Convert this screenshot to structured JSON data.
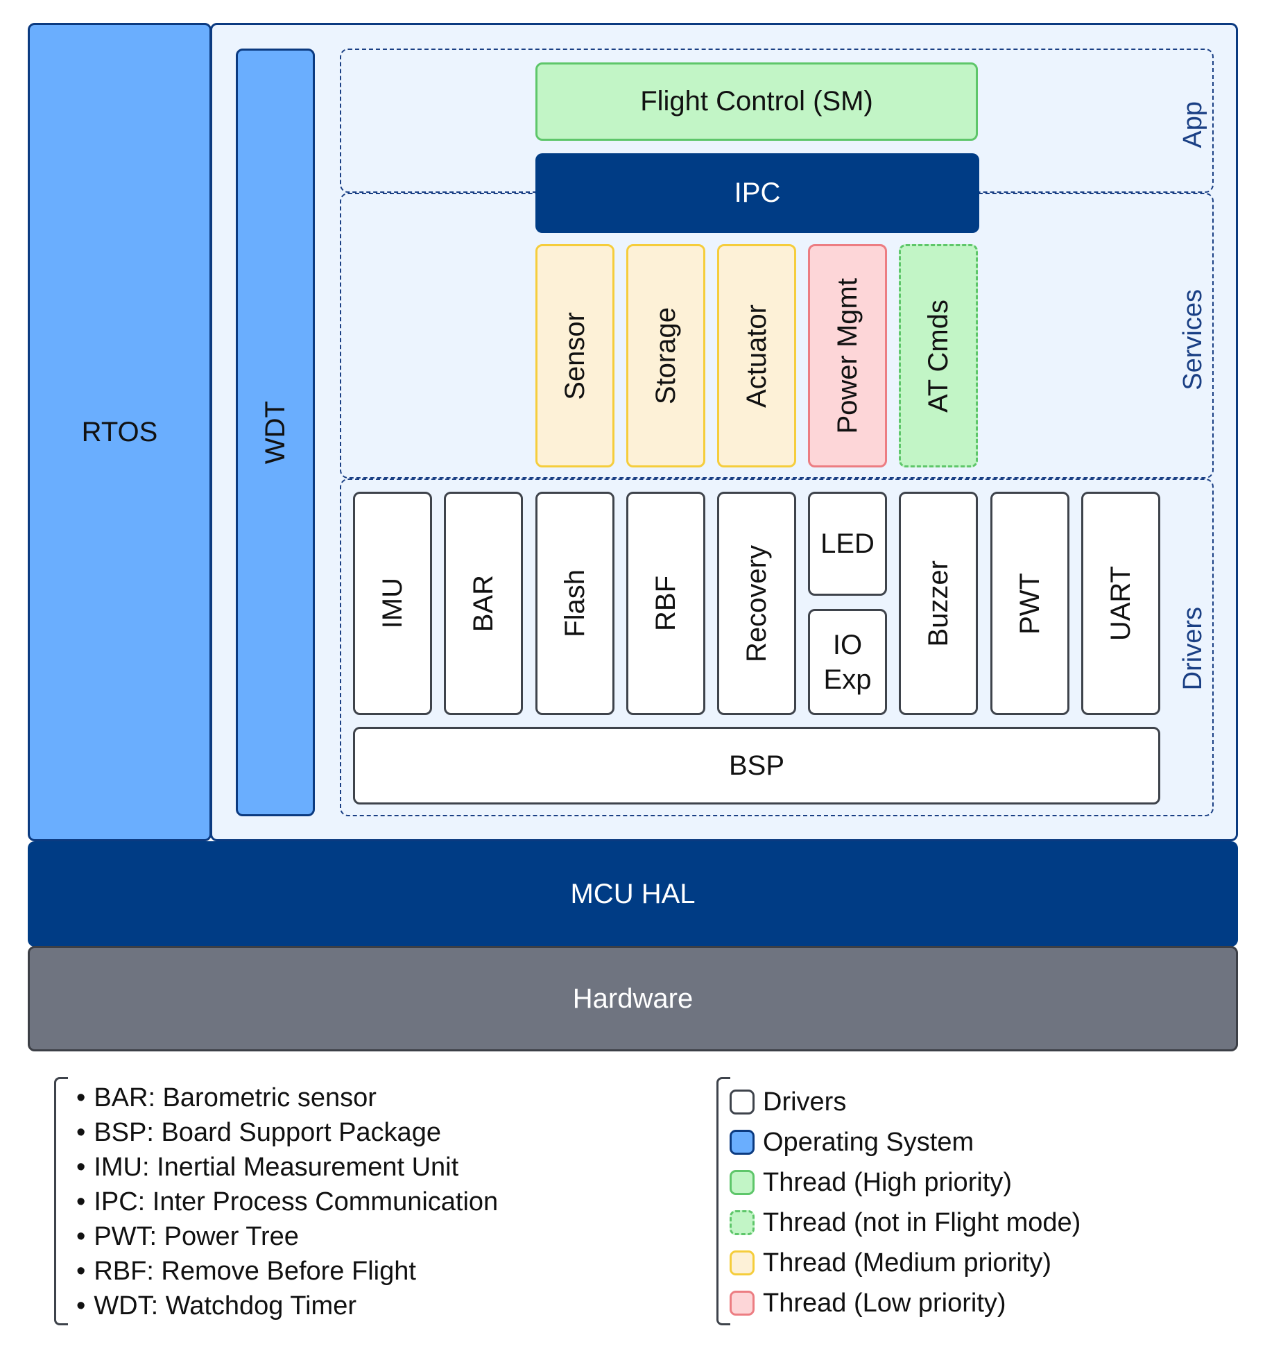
{
  "diagram": {
    "rtos": "RTOS",
    "wdt": "WDT",
    "layers": {
      "app": "App",
      "services": "Services",
      "drivers": "Drivers"
    },
    "app": {
      "flight_control": "Flight Control (SM)",
      "ipc": "IPC"
    },
    "services": {
      "sensor": "Sensor",
      "storage": "Storage",
      "actuator": "Actuator",
      "power_mgmt": "Power Mgmt",
      "at_cmds": "AT Cmds"
    },
    "drivers": {
      "imu": "IMU",
      "bar": "BAR",
      "flash": "Flash",
      "rbf": "RBF",
      "recovery": "Recovery",
      "led": "LED",
      "io_exp_1": "IO",
      "io_exp_2": "Exp",
      "buzzer": "Buzzer",
      "pwt": "PWT",
      "uart": "UART"
    },
    "bsp": "BSP",
    "mcu_hal": "MCU HAL",
    "hardware": "Hardware"
  },
  "abbreviations": [
    "BAR: Barometric sensor",
    "BSP: Board Support Package",
    "IMU: Inertial Measurement Unit",
    "IPC: Inter Process Communication",
    "PWT: Power Tree",
    "RBF: Remove Before Flight",
    "WDT: Watchdog Timer"
  ],
  "legend": {
    "drivers": "Drivers",
    "os": "Operating System",
    "high": "Thread (High priority)",
    "not_flight": "Thread (not in Flight mode)",
    "medium": "Thread (Medium priority)",
    "low": "Thread (Low priority)"
  },
  "colors": {
    "os_blue": "#6aaefe",
    "navy": "#003c85",
    "hardware_gray": "#6f7480",
    "high_green": "#c2f5c6",
    "medium_yellow": "#fdf1d7",
    "low_red": "#fdd6d8"
  }
}
